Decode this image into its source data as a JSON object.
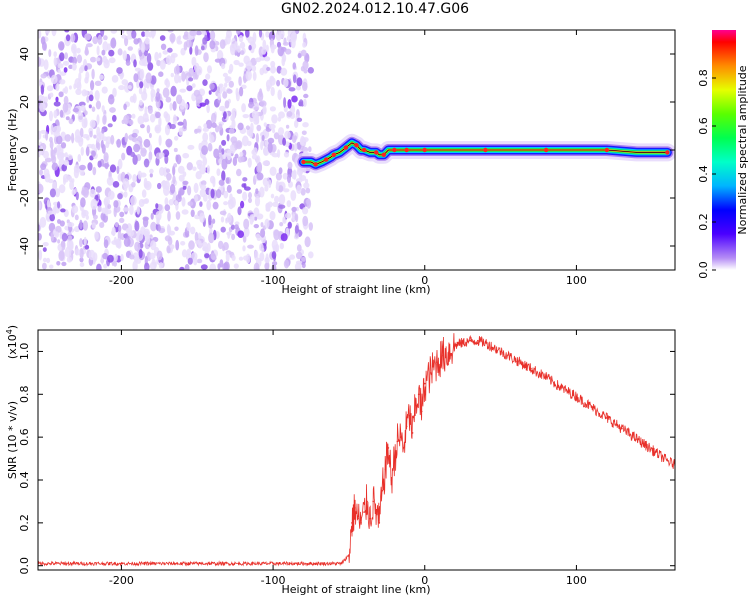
{
  "title": "GN02.2024.012.10.47.G06",
  "chart_data": [
    {
      "type": "heatmap",
      "xlabel": "Height of straight line (km)",
      "ylabel": "Frequency (Hz)",
      "xlim": [
        -255,
        165
      ],
      "ylim": [
        -50,
        50
      ],
      "xticks": [
        -200,
        -100,
        0,
        100
      ],
      "yticks": [
        -40,
        -20,
        0,
        20,
        40
      ],
      "noise_region_x": [
        -255,
        -75
      ],
      "signal_track": {
        "x": [
          -80,
          -75,
          -72,
          -68,
          -65,
          -62,
          -60,
          -56,
          -52,
          -48,
          -45,
          -42,
          -40,
          -36,
          -32,
          -30,
          -27,
          -24,
          -20,
          -16,
          -12,
          -8,
          0,
          20,
          40,
          60,
          80,
          100,
          120,
          140,
          160
        ],
        "frequency": [
          -5,
          -5,
          -6,
          -5,
          -4,
          -3,
          -2,
          -1,
          1,
          3,
          2,
          0,
          0,
          -1,
          -1,
          -2,
          -2,
          0,
          0,
          0,
          0,
          0,
          0,
          0,
          0,
          0,
          0,
          0,
          0,
          -1,
          -1
        ]
      },
      "colorbar": {
        "label": "Normalized spectral amplitude",
        "ticks": [
          "0.0",
          "0.2",
          "0.4",
          "0.6",
          "0.8"
        ],
        "range": [
          0,
          1
        ]
      },
      "grid": false
    },
    {
      "type": "line",
      "xlabel": "Height of straight line (km)",
      "ylabel": "SNR (10 * v/v)",
      "scale_label": "(x10",
      "scale_exponent": "4",
      "scale_close": ")",
      "xlim": [
        -255,
        165
      ],
      "ylim": [
        -0.02,
        1.1
      ],
      "xticks": [
        -200,
        -100,
        0,
        100
      ],
      "yticks": [
        "0.0",
        "0.2",
        "0.4",
        "0.6",
        "0.8",
        "1.0"
      ],
      "series": [
        {
          "color": "#e8302a",
          "x": [
            -255,
            -200,
            -150,
            -100,
            -55,
            -50,
            -48,
            -46,
            -44,
            -42,
            -40,
            -38,
            -36,
            -34,
            -32,
            -30,
            -28,
            -26,
            -24,
            -22,
            -20,
            -18,
            -16,
            -14,
            -12,
            -10,
            -8,
            -6,
            -4,
            -2,
            0,
            4,
            8,
            12,
            16,
            20,
            25,
            30,
            35,
            40,
            50,
            60,
            70,
            80,
            90,
            100,
            110,
            120,
            130,
            140,
            150,
            160,
            165
          ],
          "y": [
            0.01,
            0.01,
            0.01,
            0.01,
            0.01,
            0.05,
            0.2,
            0.27,
            0.22,
            0.2,
            0.25,
            0.3,
            0.22,
            0.3,
            0.25,
            0.2,
            0.35,
            0.45,
            0.55,
            0.4,
            0.5,
            0.58,
            0.6,
            0.55,
            0.65,
            0.7,
            0.62,
            0.75,
            0.8,
            0.72,
            0.85,
            0.9,
            0.95,
            0.98,
            1.0,
            1.03,
            1.04,
            1.05,
            1.05,
            1.04,
            1.0,
            0.96,
            0.92,
            0.88,
            0.83,
            0.79,
            0.74,
            0.69,
            0.64,
            0.59,
            0.54,
            0.49,
            0.47
          ]
        }
      ],
      "grid": false
    }
  ]
}
